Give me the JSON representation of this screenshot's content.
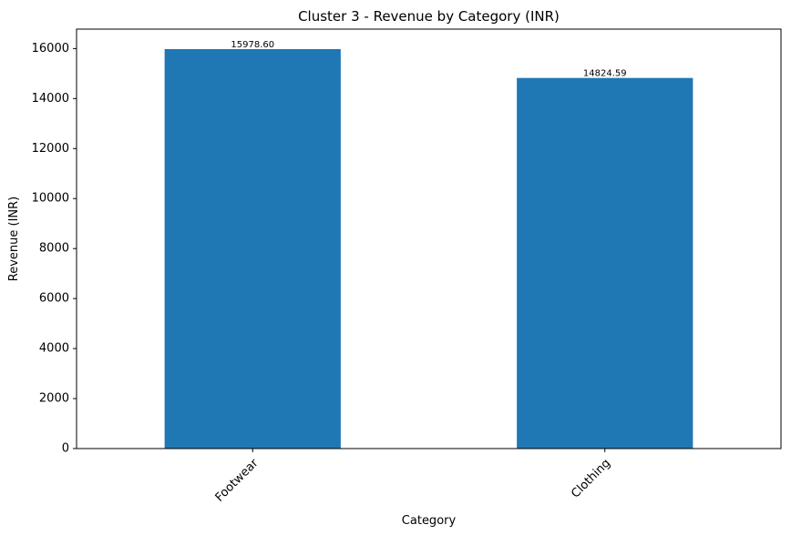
{
  "chart_data": {
    "type": "bar",
    "title": "Cluster 3 - Revenue by Category (INR)",
    "xlabel": "Category",
    "ylabel": "Revenue (INR)",
    "categories": [
      "Footwear",
      "Clothing"
    ],
    "values": [
      15978.6,
      14824.59
    ],
    "value_labels": [
      "15978.60",
      "14824.59"
    ],
    "yticks": [
      0,
      2000,
      4000,
      6000,
      8000,
      10000,
      12000,
      14000,
      16000
    ],
    "ylim": [
      0,
      16778
    ],
    "bar_color": "#1f77b4",
    "grid": false,
    "legend": "none"
  }
}
